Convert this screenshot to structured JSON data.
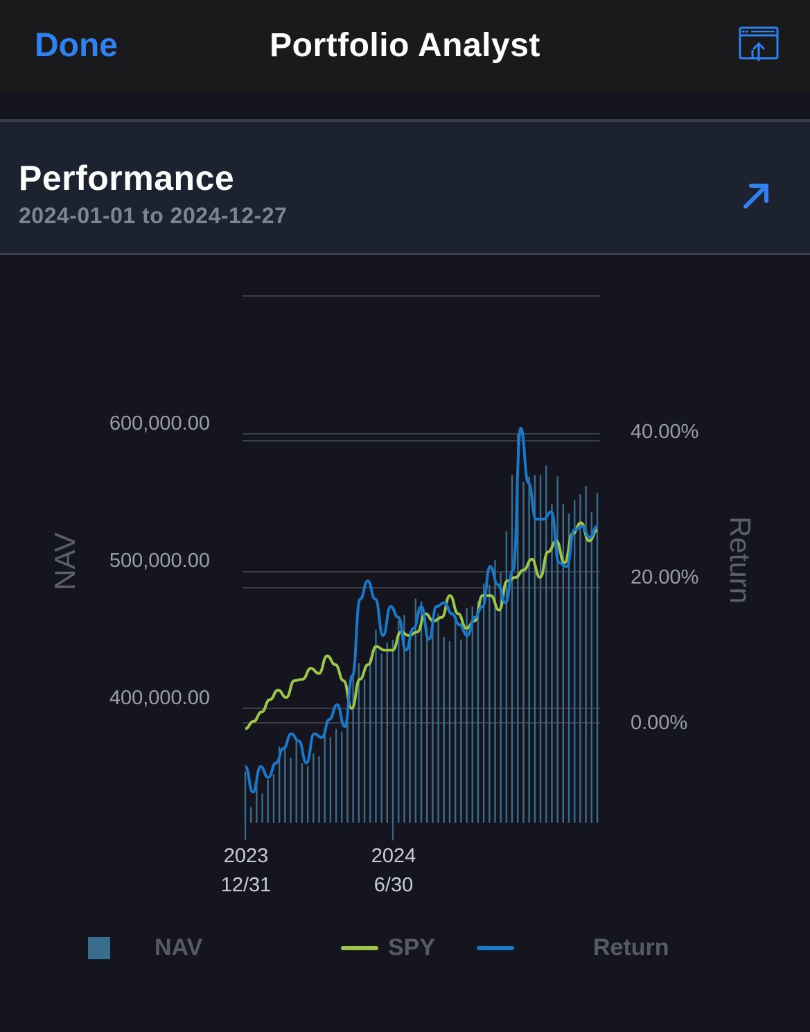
{
  "nav_bar": {
    "done_label": "Done",
    "title": "Portfolio Analyst",
    "share_icon": "share-screen-icon"
  },
  "performance": {
    "title": "Performance",
    "date_range": "2024-01-01 to 2024-12-27",
    "expand_icon": "arrow-up-right-icon"
  },
  "colors": {
    "accent": "#2f82f0",
    "nav_bars": "#3a6c8c",
    "spy_line": "#9cc54a",
    "return_line": "#1a78c8"
  },
  "chart_data": {
    "type": "bar+line",
    "y_left_label": "NAV",
    "y_right_label": "Return",
    "y_left_ticks": [
      "400,000.00",
      "500,000.00",
      "600,000.00"
    ],
    "y_left_tick_values": [
      400000,
      500000,
      600000
    ],
    "y_right_ticks": [
      "0.00%",
      "20.00%",
      "40.00%"
    ],
    "y_right_tick_values": [
      0,
      20,
      40
    ],
    "x_ticks": [
      {
        "line1": "2023",
        "line2": "12/31",
        "week": 0
      },
      {
        "line1": "2024",
        "line2": "6/30",
        "week": 26
      }
    ],
    "legend": [
      {
        "type": "bar",
        "label": "NAV"
      },
      {
        "type": "line",
        "label": "SPY"
      },
      {
        "type": "line",
        "label": "Return"
      }
    ],
    "series": [
      {
        "name": "NAV",
        "kind": "bar",
        "axis": "left",
        "values": [
          354000,
          328000,
          345000,
          338000,
          348000,
          352000,
          372000,
          370000,
          364000,
          378000,
          360000,
          358000,
          367000,
          365000,
          382000,
          379000,
          385000,
          383000,
          390000,
          426000,
          433000,
          421000,
          437000,
          457000,
          440000,
          448000,
          450000,
          464000,
          468000,
          456000,
          480000,
          478000,
          459000,
          461000,
          469000,
          452000,
          449000,
          464000,
          450000,
          473000,
          474000,
          478000,
          491000,
          490000,
          508000,
          499000,
          529000,
          570000,
          600000,
          565000,
          569000,
          570000,
          570000,
          577000,
          549000,
          569000,
          549000,
          542000,
          552000,
          556000,
          562000,
          543000,
          557000
        ]
      },
      {
        "name": "SPY",
        "kind": "line",
        "axis": "right",
        "values": [
          -0.8,
          0.2,
          1.5,
          3.2,
          4.5,
          3.5,
          5.8,
          6.0,
          7.5,
          6.8,
          9.2,
          8.0,
          5.8,
          2.0,
          6.0,
          8.0,
          10.5,
          10.0,
          10.0,
          12.5,
          12.0,
          12.5,
          15.0,
          14.0,
          14.5,
          17.5,
          15.0,
          13.0,
          14.0,
          17.5,
          17.5,
          15.5,
          19.5,
          20.0,
          21.0,
          22.5,
          20.0,
          23.5,
          25.0,
          22.0,
          26.0,
          27.5,
          25.0,
          26.5
        ]
      },
      {
        "name": "Return",
        "kind": "line",
        "axis": "right",
        "values": [
          -6.0,
          -9.5,
          -6.0,
          -7.5,
          -5.5,
          -3.5,
          -1.5,
          -2.5,
          -5.5,
          -1.5,
          -2.0,
          0.5,
          2.5,
          -0.5,
          6.5,
          17.0,
          19.5,
          17.0,
          12.0,
          16.0,
          14.5,
          10.0,
          13.0,
          16.0,
          11.5,
          16.0,
          16.5,
          15.0,
          13.5,
          12.0,
          14.5,
          16.0,
          21.5,
          19.0,
          16.5,
          21.0,
          40.5,
          33.0,
          28.0,
          28.0,
          29.0,
          22.0,
          21.5,
          26.5,
          27.0,
          25.5,
          27.0
        ]
      }
    ]
  }
}
